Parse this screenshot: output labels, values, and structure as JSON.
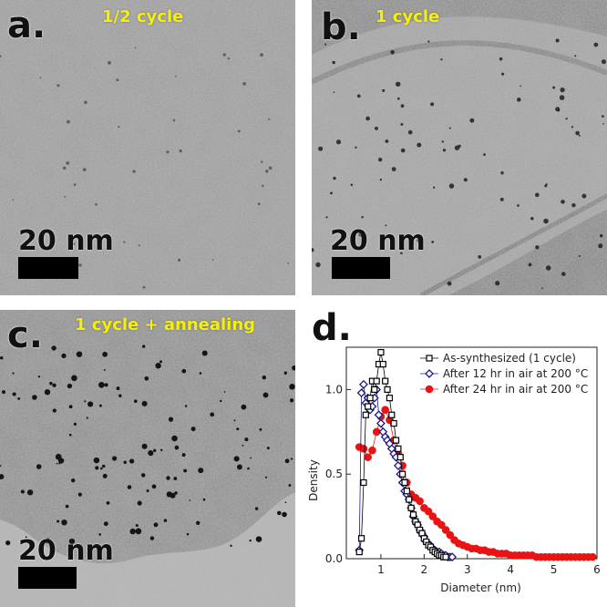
{
  "panels": [
    {
      "letter": "a.",
      "condition": "1/2 cycle",
      "scale_label": "20 nm",
      "scale_nm": 20,
      "particle_density": "low"
    },
    {
      "letter": "b.",
      "condition": "1 cycle",
      "scale_label": "20 nm",
      "scale_nm": 20,
      "particle_density": "medium"
    },
    {
      "letter": "c.",
      "condition": "1 cycle + annealing",
      "scale_label": "20 nm",
      "scale_nm": 20,
      "particle_density": "high"
    },
    {
      "letter": "d.",
      "condition": "",
      "scale_label": "",
      "scale_nm": 0,
      "particle_density": ""
    }
  ],
  "colors": {
    "highlight": "#f5ef10",
    "series_black": "#000000",
    "series_blue": "#1a1a8c",
    "series_red": "#e81414"
  },
  "chart_data": {
    "type": "scatter",
    "title": "",
    "xlabel": "Diameter (nm)",
    "ylabel": "Density",
    "xlim": [
      0.2,
      6
    ],
    "ylim": [
      0,
      1.25
    ],
    "xticks": [
      "1",
      "2",
      "3",
      "4",
      "5",
      "6"
    ],
    "yticks": [
      "0.0",
      "0.5",
      "1.0"
    ],
    "legend_position": "top-right",
    "series": [
      {
        "name": "As-synthesized (1 cycle)",
        "marker": "square-open",
        "color": "#000000",
        "x": [
          0.5,
          0.55,
          0.6,
          0.65,
          0.7,
          0.75,
          0.8,
          0.85,
          0.9,
          0.95,
          1.0,
          1.05,
          1.1,
          1.15,
          1.2,
          1.25,
          1.3,
          1.35,
          1.4,
          1.45,
          1.5,
          1.55,
          1.6,
          1.65,
          1.7,
          1.75,
          1.8,
          1.85,
          1.9,
          1.95,
          2.0,
          2.05,
          2.1,
          2.15,
          2.2,
          2.25,
          2.3,
          2.35,
          2.4,
          2.45,
          2.5
        ],
        "y": [
          0.04,
          0.12,
          0.45,
          0.85,
          0.9,
          0.95,
          1.05,
          1.0,
          1.05,
          1.15,
          1.22,
          1.15,
          1.05,
          1.0,
          0.95,
          0.85,
          0.8,
          0.7,
          0.65,
          0.6,
          0.5,
          0.45,
          0.4,
          0.35,
          0.3,
          0.26,
          0.22,
          0.2,
          0.17,
          0.15,
          0.12,
          0.1,
          0.08,
          0.07,
          0.05,
          0.04,
          0.03,
          0.02,
          0.02,
          0.01,
          0.01
        ]
      },
      {
        "name": "After 12 hr in air at 200 °C",
        "marker": "diamond-open",
        "color": "#1a1a8c",
        "x": [
          0.5,
          0.55,
          0.6,
          0.65,
          0.7,
          0.75,
          0.8,
          0.85,
          0.9,
          0.95,
          1.0,
          1.05,
          1.1,
          1.15,
          1.2,
          1.25,
          1.3,
          1.35,
          1.4,
          1.45,
          1.5,
          1.55,
          1.6,
          1.65,
          1.7,
          1.75,
          1.8,
          1.85,
          1.9,
          1.95,
          2.0,
          2.05,
          2.1,
          2.15,
          2.2,
          2.25,
          2.3,
          2.35,
          2.4,
          2.45,
          2.5,
          2.55,
          2.6,
          2.65
        ],
        "y": [
          0.05,
          0.98,
          1.03,
          0.92,
          0.95,
          0.88,
          0.9,
          0.95,
          1.0,
          0.85,
          0.8,
          0.75,
          0.72,
          0.7,
          0.68,
          0.65,
          0.62,
          0.6,
          0.55,
          0.5,
          0.45,
          0.4,
          0.38,
          0.35,
          0.3,
          0.25,
          0.22,
          0.2,
          0.17,
          0.15,
          0.13,
          0.1,
          0.09,
          0.07,
          0.06,
          0.05,
          0.04,
          0.04,
          0.03,
          0.02,
          0.02,
          0.01,
          0.01,
          0.01
        ]
      },
      {
        "name": "After 24 hr in air at 200 °C",
        "marker": "circle-filled",
        "color": "#e81414",
        "x": [
          0.5,
          0.6,
          0.7,
          0.8,
          0.9,
          1.0,
          1.1,
          1.2,
          1.3,
          1.4,
          1.5,
          1.6,
          1.7,
          1.8,
          1.9,
          2.0,
          2.1,
          2.2,
          2.3,
          2.4,
          2.5,
          2.6,
          2.7,
          2.8,
          2.9,
          3.0,
          3.1,
          3.2,
          3.3,
          3.4,
          3.5,
          3.6,
          3.7,
          3.8,
          3.9,
          4.0,
          4.1,
          4.2,
          4.3,
          4.4,
          4.5,
          4.6,
          4.7,
          4.8,
          4.9,
          5.0,
          5.1,
          5.2,
          5.3,
          5.4,
          5.5,
          5.6,
          5.7,
          5.8,
          5.9
        ],
        "y": [
          0.66,
          0.65,
          0.6,
          0.64,
          0.75,
          0.84,
          0.88,
          0.82,
          0.7,
          0.62,
          0.55,
          0.45,
          0.38,
          0.36,
          0.34,
          0.3,
          0.28,
          0.25,
          0.22,
          0.2,
          0.17,
          0.14,
          0.11,
          0.09,
          0.08,
          0.07,
          0.06,
          0.06,
          0.05,
          0.05,
          0.04,
          0.04,
          0.03,
          0.03,
          0.03,
          0.02,
          0.02,
          0.02,
          0.02,
          0.02,
          0.02,
          0.01,
          0.01,
          0.01,
          0.01,
          0.01,
          0.01,
          0.01,
          0.01,
          0.01,
          0.01,
          0.01,
          0.01,
          0.01,
          0.01
        ]
      }
    ]
  }
}
